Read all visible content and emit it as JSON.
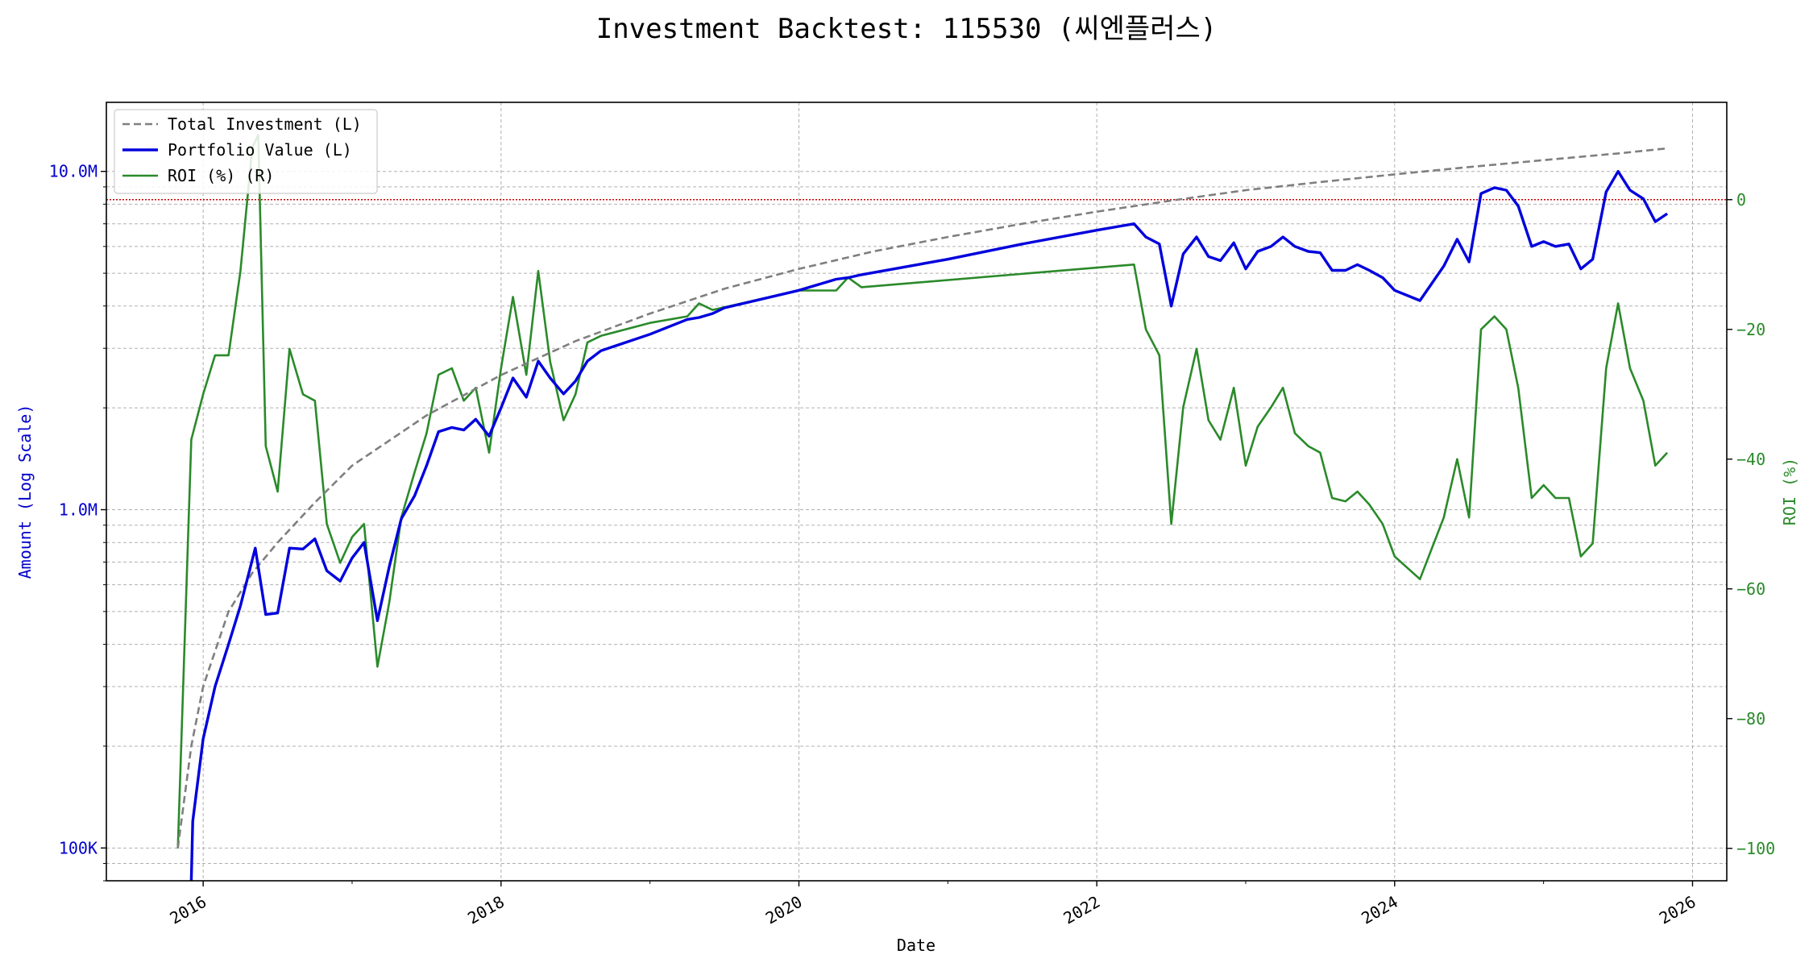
{
  "chart_data": {
    "type": "line",
    "title": "Investment Backtest: 115530 (씨엔플러스)",
    "xlabel": "Date",
    "ylabel_left": "Amount (Log Scale)",
    "ylabel_right": "ROI (%)",
    "left_scale": "log",
    "xlim": [
      2015.35,
      2026.23
    ],
    "ylim_left": [
      80000,
      16000000
    ],
    "ylim_right": [
      -105,
      15
    ],
    "x_ticks": [
      2016,
      2018,
      2020,
      2022,
      2024,
      2026
    ],
    "x_tick_labels": [
      "2016",
      "2018",
      "2020",
      "2022",
      "2024",
      "2026"
    ],
    "y_left_ticks": [
      100000,
      1000000,
      10000000
    ],
    "y_left_tick_labels": [
      "100K",
      "1.0M",
      "10.0M"
    ],
    "y_right_ticks": [
      0,
      -20,
      -40,
      -60,
      -80,
      -100
    ],
    "y_right_tick_labels": [
      "0",
      "−20",
      "−40",
      "−60",
      "−80",
      "−100"
    ],
    "grid": true,
    "legend_position": "top-left",
    "reference_line": {
      "axis": "right",
      "value": 0,
      "color": "#cc0000",
      "style": "dotted"
    },
    "colors": {
      "total_investment": "#7f7f7f",
      "portfolio_value": "#0000dd",
      "roi": "#2a8a2a",
      "left_axis": "#0000cc",
      "right_axis": "#2a8a2a",
      "grid": "#b0b0b0"
    },
    "series": [
      {
        "name": "Total Investment (L)",
        "axis": "left",
        "style": "dashed",
        "x": [
          2015.83,
          2015.92,
          2016.0,
          2016.17,
          2016.33,
          2016.5,
          2016.75,
          2017.0,
          2017.5,
          2018.0,
          2018.5,
          2019.0,
          2019.5,
          2020.0,
          2020.5,
          2021.0,
          2021.5,
          2022.0,
          2022.5,
          2023.0,
          2023.5,
          2024.0,
          2024.5,
          2025.0,
          2025.5,
          2025.83
        ],
        "values": [
          100000,
          200000,
          300000,
          500000,
          650000,
          800000,
          1050000,
          1350000,
          1900000,
          2500000,
          3150000,
          3800000,
          4500000,
          5150000,
          5800000,
          6400000,
          7000000,
          7600000,
          8200000,
          8800000,
          9300000,
          9800000,
          10300000,
          10800000,
          11300000,
          11700000
        ]
      },
      {
        "name": "Portfolio Value (L)",
        "axis": "left",
        "style": "solid",
        "x": [
          2015.92,
          2015.93,
          2016.0,
          2016.08,
          2016.17,
          2016.25,
          2016.35,
          2016.42,
          2016.5,
          2016.58,
          2016.67,
          2016.75,
          2016.83,
          2016.92,
          2017.0,
          2017.08,
          2017.17,
          2017.25,
          2017.33,
          2017.42,
          2017.5,
          2017.58,
          2017.67,
          2017.75,
          2017.83,
          2017.92,
          2018.0,
          2018.08,
          2018.17,
          2018.25,
          2018.33,
          2018.42,
          2018.5,
          2018.58,
          2018.67,
          2019.0,
          2019.25,
          2019.33,
          2019.42,
          2019.5,
          2020.0,
          2020.25,
          2020.33,
          2020.42,
          2021.0,
          2021.5,
          2022.0,
          2022.25,
          2022.33,
          2022.42,
          2022.5,
          2022.58,
          2022.67,
          2022.75,
          2022.83,
          2022.92,
          2023.0,
          2023.08,
          2023.17,
          2023.25,
          2023.33,
          2023.42,
          2023.5,
          2023.58,
          2023.67,
          2023.75,
          2023.83,
          2023.92,
          2024.0,
          2024.17,
          2024.33,
          2024.42,
          2024.5,
          2024.58,
          2024.67,
          2024.75,
          2024.83,
          2024.92,
          2025.0,
          2025.08,
          2025.17,
          2025.25,
          2025.33,
          2025.42,
          2025.5,
          2025.58,
          2025.67,
          2025.75,
          2025.83
        ],
        "values": [
          80000,
          120000,
          210000,
          300000,
          400000,
          520000,
          770000,
          490000,
          495000,
          770000,
          765000,
          820000,
          660000,
          615000,
          720000,
          800000,
          470000,
          680000,
          940000,
          1100000,
          1350000,
          1700000,
          1750000,
          1720000,
          1850000,
          1650000,
          2000000,
          2450000,
          2150000,
          2750000,
          2450000,
          2200000,
          2400000,
          2750000,
          2950000,
          3300000,
          3650000,
          3700000,
          3800000,
          3950000,
          4450000,
          4800000,
          4850000,
          4950000,
          5500000,
          6100000,
          6700000,
          7000000,
          6400000,
          6100000,
          4000000,
          5700000,
          6400000,
          5600000,
          5450000,
          6150000,
          5150000,
          5800000,
          6000000,
          6400000,
          6000000,
          5800000,
          5750000,
          5100000,
          5100000,
          5300000,
          5100000,
          4850000,
          4450000,
          4150000,
          5250000,
          6300000,
          5400000,
          8600000,
          8950000,
          8800000,
          7900000,
          6000000,
          6200000,
          6000000,
          6100000,
          5150000,
          5500000,
          8700000,
          10000000,
          8800000,
          8300000,
          7100000,
          7500000
        ]
      },
      {
        "name": "ROI (%) (R)",
        "axis": "right",
        "style": "solid",
        "x": [
          2015.83,
          2015.92,
          2016.0,
          2016.08,
          2016.17,
          2016.25,
          2016.33,
          2016.37,
          2016.42,
          2016.5,
          2016.58,
          2016.67,
          2016.75,
          2016.83,
          2016.92,
          2017.0,
          2017.08,
          2017.17,
          2017.25,
          2017.33,
          2017.42,
          2017.5,
          2017.58,
          2017.67,
          2017.75,
          2017.83,
          2017.92,
          2018.0,
          2018.08,
          2018.17,
          2018.25,
          2018.33,
          2018.42,
          2018.5,
          2018.58,
          2018.67,
          2019.0,
          2019.25,
          2019.33,
          2019.42,
          2020.0,
          2020.25,
          2020.33,
          2020.42,
          2022.25,
          2022.33,
          2022.42,
          2022.5,
          2022.58,
          2022.67,
          2022.75,
          2022.83,
          2022.92,
          2023.0,
          2023.08,
          2023.17,
          2023.25,
          2023.33,
          2023.42,
          2023.5,
          2023.58,
          2023.67,
          2023.75,
          2023.83,
          2023.92,
          2024.0,
          2024.17,
          2024.33,
          2024.42,
          2024.5,
          2024.58,
          2024.67,
          2024.75,
          2024.83,
          2024.92,
          2025.0,
          2025.08,
          2025.17,
          2025.25,
          2025.33,
          2025.42,
          2025.5,
          2025.58,
          2025.67,
          2025.75,
          2025.83
        ],
        "values": [
          -100,
          -37,
          -30,
          -24,
          -24,
          -11,
          8,
          10,
          -38,
          -45,
          -23,
          -30,
          -31,
          -50,
          -56,
          -52,
          -50,
          -72,
          -62,
          -49,
          -42,
          -36,
          -27,
          -26,
          -31,
          -29,
          -39,
          -26,
          -15,
          -27,
          -11,
          -25,
          -34,
          -30,
          -22,
          -21,
          -19,
          -18,
          -16,
          -17,
          -14,
          -14,
          -12,
          -13.5,
          -10,
          -20,
          -24,
          -50,
          -32,
          -23,
          -34,
          -37,
          -29,
          -41,
          -35,
          -32,
          -29,
          -36,
          -38,
          -39,
          -46,
          -46.5,
          -45,
          -47,
          -50,
          -55,
          -58.5,
          -49,
          -40,
          -49,
          -20,
          -18,
          -20,
          -29,
          -46,
          -44,
          -46,
          -46,
          -55,
          -53,
          -26,
          -16,
          -26,
          -31,
          -41,
          -39
        ]
      }
    ]
  }
}
